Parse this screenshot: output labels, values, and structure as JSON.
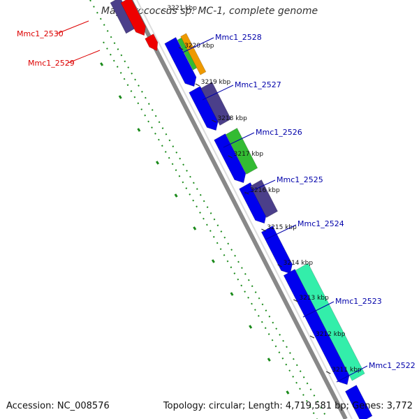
{
  "title": "Magnetococcus sp. MC-1, complete genome",
  "footer": {
    "accession": "Accession: NC_008576",
    "summary": "Topology: circular; Length: 4,719,581 bp; Genes: 3,772"
  },
  "colors": {
    "label_forward": "#0000aa",
    "label_reverse": "#dd0000",
    "backbone": "#888888",
    "tick": "#1a8a1a",
    "cds_forward": "#0000ee",
    "cds_other": "#4b3f8a",
    "cds_red": "#ee0000",
    "cds_green": "#33bb33",
    "cds_orange": "#ee9900",
    "cds_teal": "#33eeaa"
  },
  "ticks": [
    "3221 kbp",
    "3220 kbp",
    "3219 kbp",
    "3218 kbp",
    "3217 kbp",
    "3216 kbp",
    "3215 kbp",
    "3214 kbp",
    "3213 kbp",
    "3212 kbp",
    "3211 kbp"
  ],
  "gene_labels": [
    {
      "text": "Mmc1_2530",
      "strand": "reverse"
    },
    {
      "text": "Mmc1_2529",
      "strand": "reverse"
    },
    {
      "text": "Mmc1_2528",
      "strand": "forward"
    },
    {
      "text": "Mmc1_2527",
      "strand": "forward"
    },
    {
      "text": "Mmc1_2526",
      "strand": "forward"
    },
    {
      "text": "Mmc1_2525",
      "strand": "forward"
    },
    {
      "text": "Mmc1_2524",
      "strand": "forward"
    },
    {
      "text": "Mmc1_2523",
      "strand": "forward"
    },
    {
      "text": "Mmc1_2522",
      "strand": "forward"
    }
  ]
}
